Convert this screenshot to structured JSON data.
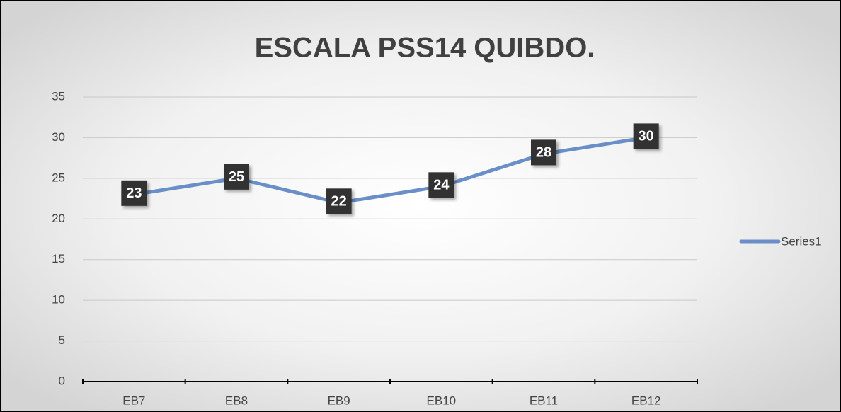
{
  "chart_data": {
    "type": "line",
    "title": "ESCALA PSS14 QUIBDO.",
    "categories": [
      "EB7",
      "EB8",
      "EB9",
      "EB10",
      "EB11",
      "EB12"
    ],
    "series": [
      {
        "name": "Series1",
        "color": "#6a8fc8",
        "values": [
          23,
          25,
          22,
          24,
          28,
          30
        ]
      }
    ],
    "ylim": [
      0,
      35
    ],
    "yticks": [
      0,
      5,
      10,
      15,
      20,
      25,
      30,
      35
    ],
    "grid": true,
    "legend": "right"
  }
}
